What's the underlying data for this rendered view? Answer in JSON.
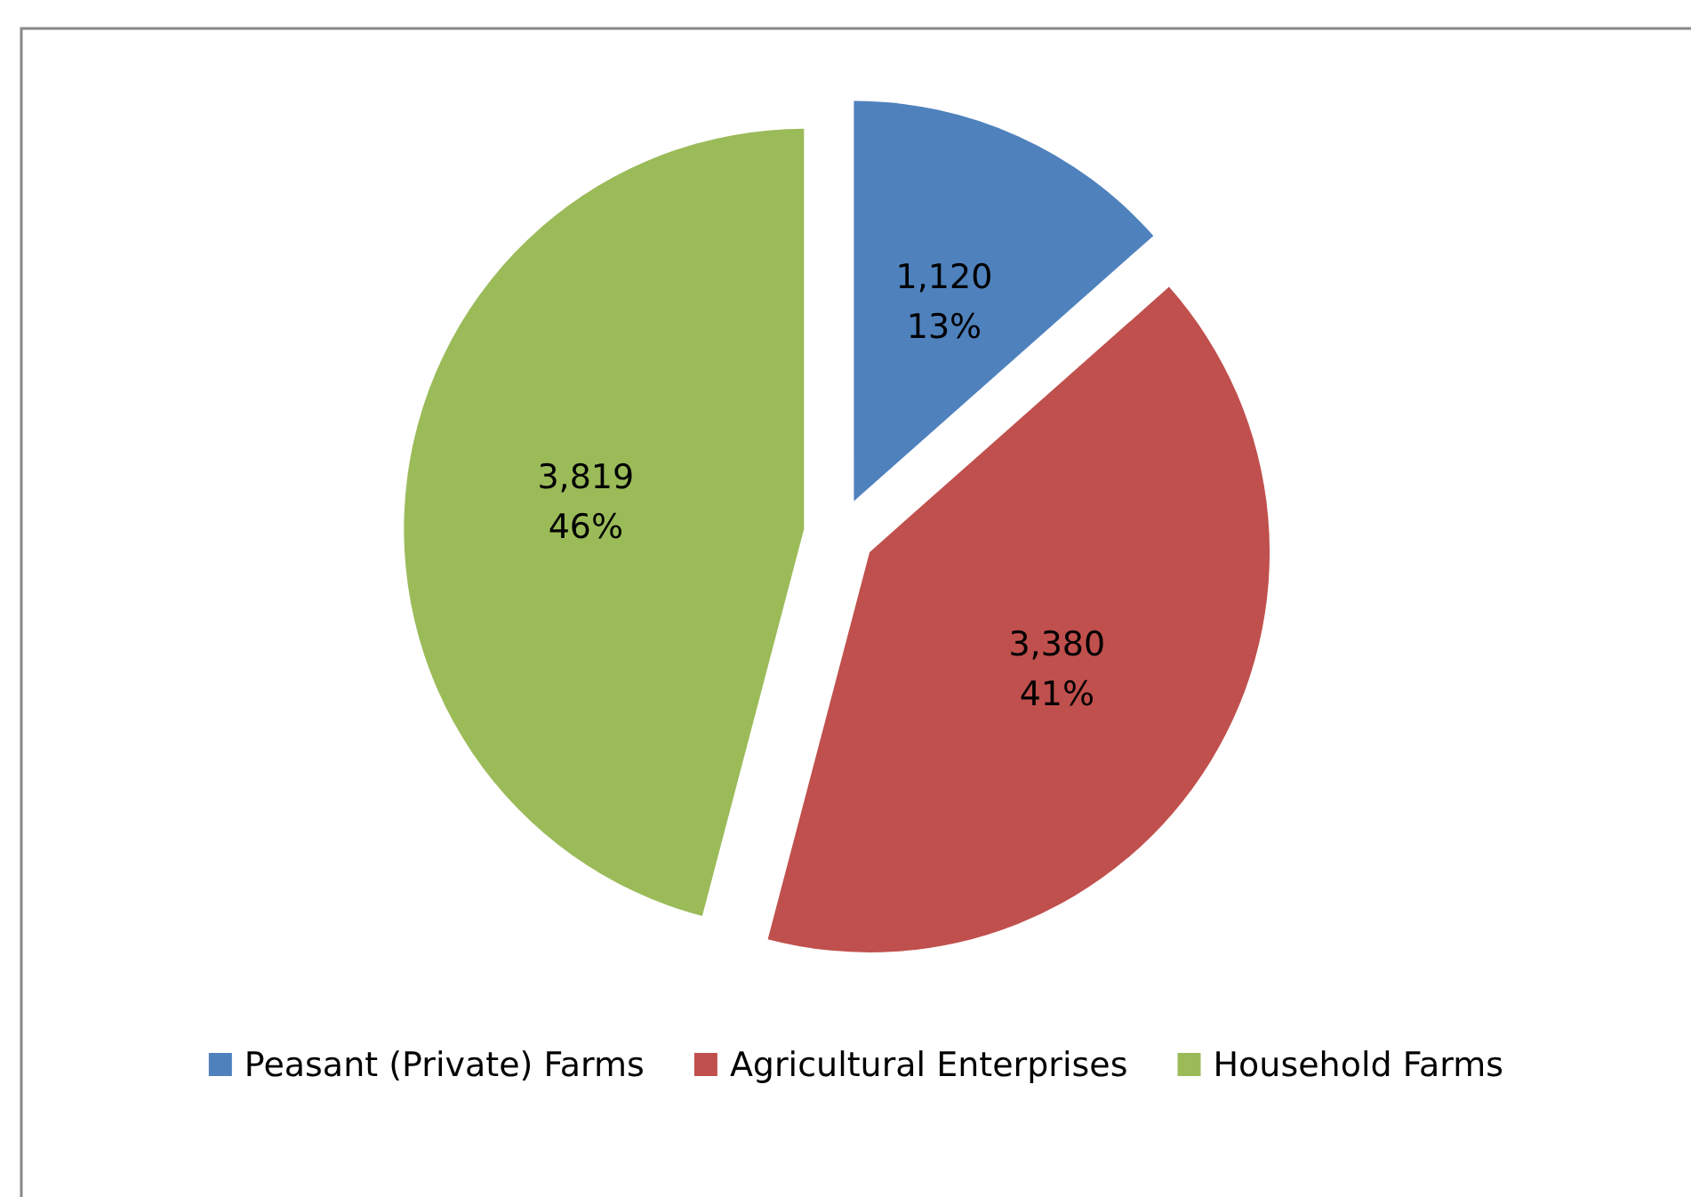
{
  "chart_data": {
    "type": "pie",
    "categories": [
      "Peasant (Private) Farms",
      "Agricultural Enterprises",
      "Household Farms"
    ],
    "values": [
      1120,
      3380,
      3819
    ],
    "colors": [
      "#4f81bd",
      "#c0504d",
      "#9bbb59"
    ],
    "value_labels": [
      "1,120\n13%",
      "3,380\n41%",
      "3,819\n46%"
    ],
    "legend": "bottom"
  }
}
